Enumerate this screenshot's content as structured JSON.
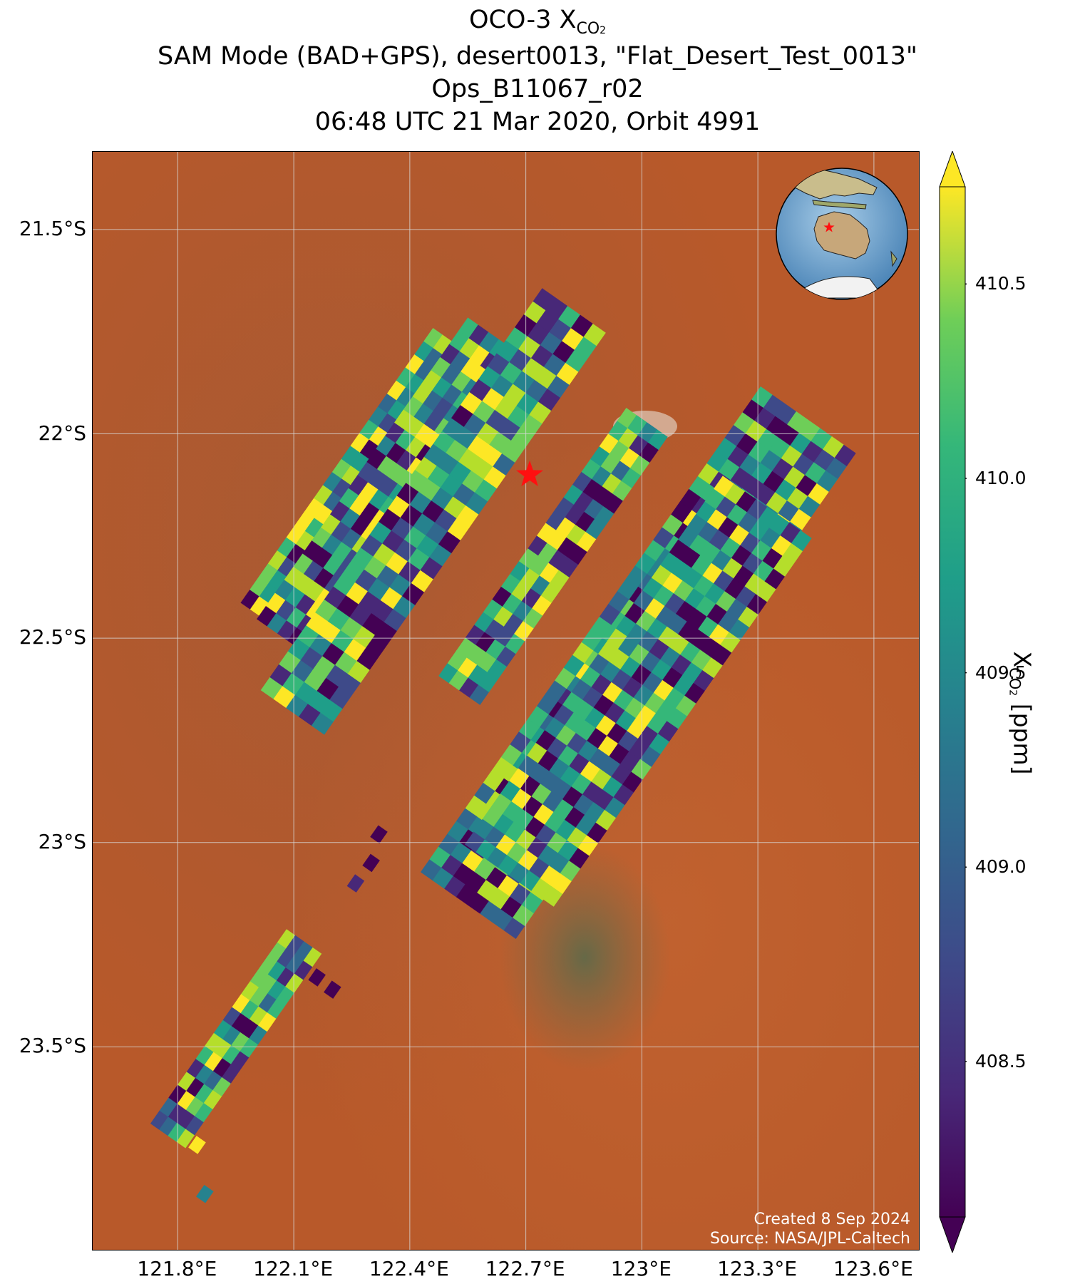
{
  "title": {
    "line1_prefix": "OCO-3 X",
    "line1_sub": "CO",
    "line1_sub2": "2",
    "line2": "SAM Mode (BAD+GPS), desert0013, \"Flat_Desert_Test_0013\"",
    "line3": "Ops_B11067_r02",
    "line4": "06:48 UTC 21 Mar 2020, Orbit 4991"
  },
  "map": {
    "lon_range": [
      121.58,
      123.72
    ],
    "lat_range": [
      -24.0,
      -21.31
    ],
    "lat_ticks": [
      {
        "value": -21.5,
        "label": "21.5°S"
      },
      {
        "value": -22.0,
        "label": "22°S"
      },
      {
        "value": -22.5,
        "label": "22.5°S"
      },
      {
        "value": -23.0,
        "label": "23°S"
      },
      {
        "value": -23.5,
        "label": "23.5°S"
      }
    ],
    "lon_ticks": [
      {
        "value": 121.8,
        "label": "121.8°E"
      },
      {
        "value": 122.1,
        "label": "122.1°E"
      },
      {
        "value": 122.4,
        "label": "122.4°E"
      },
      {
        "value": 122.7,
        "label": "122.7°E"
      },
      {
        "value": 123.0,
        "label": "123°E"
      },
      {
        "value": 123.3,
        "label": "123.3°E"
      },
      {
        "value": 123.6,
        "label": "123.6°E"
      }
    ],
    "target": {
      "lon": 122.71,
      "lat": -22.1,
      "marker": "red-star-icon"
    },
    "background_color": "#b8592a",
    "grid": true
  },
  "chart_data": {
    "type": "heatmap",
    "variable": "XCO2",
    "units": "ppm",
    "colormap": "viridis",
    "color_range": [
      408.1,
      410.75
    ],
    "extend": "both",
    "swaths": [
      {
        "lon": 122.26,
        "lat": -22.11,
        "along": 0.82,
        "width": 0.12
      },
      {
        "lon": 122.33,
        "lat": -22.12,
        "along": 0.9,
        "width": 0.13
      },
      {
        "lon": 122.46,
        "lat": -22.19,
        "along": 1.2,
        "width": 0.2
      },
      {
        "lon": 122.77,
        "lat": -22.3,
        "along": 0.8,
        "width": 0.13
      },
      {
        "lon": 122.99,
        "lat": -22.56,
        "along": 1.45,
        "width": 0.3
      },
      {
        "lon": 122.99,
        "lat": -22.63,
        "along": 1.1,
        "width": 0.28
      },
      {
        "lon": 121.95,
        "lat": -23.48,
        "along": 0.58,
        "width": 0.11
      }
    ],
    "isolated_pixels": [
      {
        "lon": 122.32,
        "lat": -22.98,
        "value": 408.3
      },
      {
        "lon": 122.3,
        "lat": -23.05,
        "value": 408.2
      },
      {
        "lon": 122.26,
        "lat": -23.1,
        "value": 408.4
      },
      {
        "lon": 122.16,
        "lat": -23.33,
        "value": 408.3
      },
      {
        "lon": 122.2,
        "lat": -23.36,
        "value": 408.2
      },
      {
        "lon": 121.85,
        "lat": -23.74,
        "value": 410.6
      },
      {
        "lon": 121.87,
        "lat": -23.86,
        "value": 409.2
      }
    ]
  },
  "colorbar": {
    "ticks": [
      {
        "value": 410.5,
        "label": "410.5"
      },
      {
        "value": 410.0,
        "label": "410.0"
      },
      {
        "value": 409.5,
        "label": "409.5"
      },
      {
        "value": 409.0,
        "label": "409.0"
      },
      {
        "value": 408.5,
        "label": "408.5"
      }
    ],
    "label_prefix": "X",
    "label_sub": "CO",
    "label_sub2": "2",
    "label_suffix": " [ppm]"
  },
  "credits": {
    "line1": "Created 8 Sep 2024",
    "line2": "Source: NASA/JPL-Caltech"
  }
}
